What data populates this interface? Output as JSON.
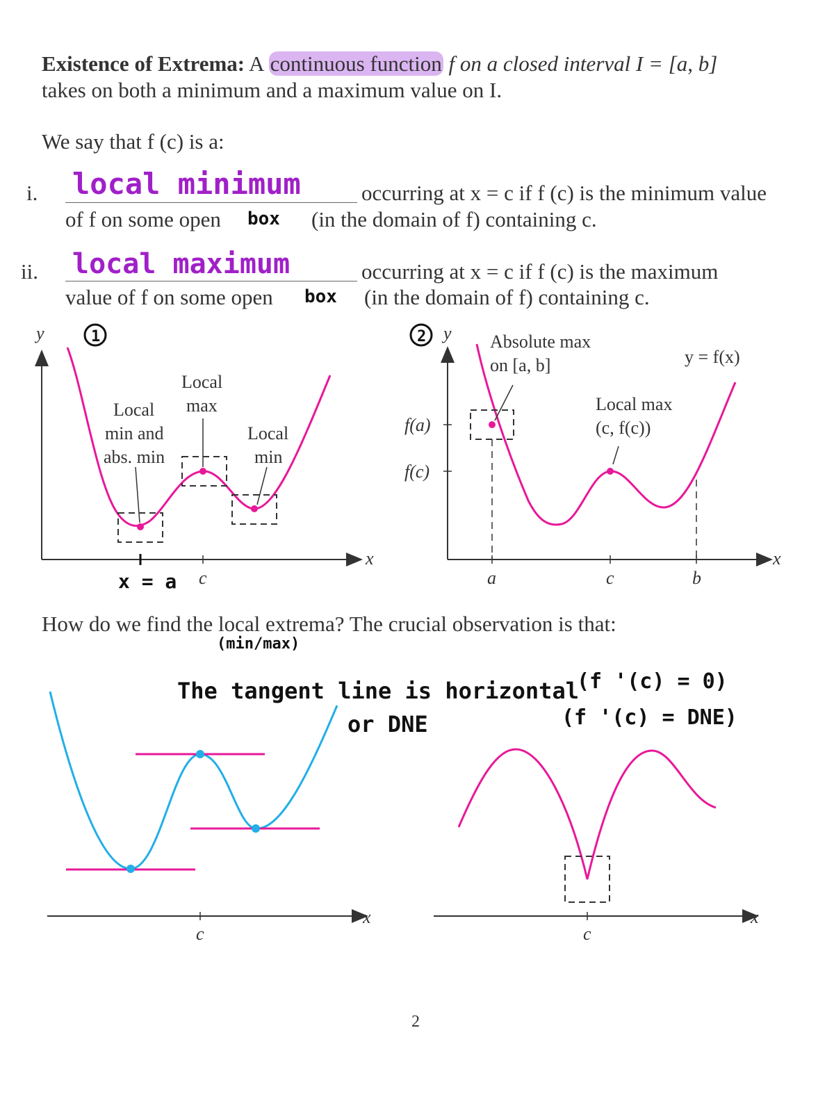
{
  "definition": {
    "heading": "Existence of Extrema:",
    "text_before": "A",
    "highlight": "continuous function",
    "text_after": "f on a closed interval I = [a, b]",
    "line2": "takes on both a minimum and a maximum value on I."
  },
  "say_line": "We say that f (c) is a:",
  "item1": {
    "numeral": "i.",
    "handwritten": "local minimum",
    "text1": "occurring at x = c if f (c) is the minimum value",
    "text2a": "of f on some open",
    "handwritten_box": "box",
    "text2b": "(in the domain of f) containing c."
  },
  "item2": {
    "numeral": "ii.",
    "handwritten": "local maximum",
    "text1": "occurring at x = c if f (c) is the maximum",
    "text2a": "value of f on some open",
    "handwritten_box": "box",
    "text2b": "(in the domain of f) containing c."
  },
  "figure1": {
    "marker": "1",
    "y_axis": "y",
    "x_axis": "x",
    "label_local_max_1": "Local",
    "label_local_max_2": "max",
    "label_min_abs_1": "Local",
    "label_min_abs_2": "min and",
    "label_min_abs_3": "abs. min",
    "label_local_min_1": "Local",
    "label_local_min_2": "min",
    "tick_c": "c",
    "handwritten_xa": "x = a"
  },
  "figure2": {
    "marker": "2",
    "y_axis": "y",
    "x_axis": "x",
    "label_abs_max_1": "Absolute max",
    "label_abs_max_2": "on [a, b]",
    "label_func": "y = f(x)",
    "label_local_max_1": "Local max",
    "label_local_max_2": "(c, f(c))",
    "tick_fa": "f(a)",
    "tick_fc": "f(c)",
    "tick_a": "a",
    "tick_c": "c",
    "tick_b": "b"
  },
  "question": "How do we find the local extrema? The crucial observation is that:",
  "handwritten_minmax": "(min/max)",
  "handwritten_tangent": "The tangent line is horizontal",
  "handwritten_dne": "or DNE",
  "handwritten_fprime0": "(f '(c) = 0)",
  "handwritten_fprime_dne": "(f '(c) = DNE)",
  "figure3": {
    "x_axis": "x",
    "tick_c": "c"
  },
  "figure4": {
    "x_axis": "x",
    "tick_c": "c"
  },
  "page_number": "2",
  "colors": {
    "pink": "#e8189a",
    "blue": "#22aee8",
    "purple": "#a020c8"
  }
}
